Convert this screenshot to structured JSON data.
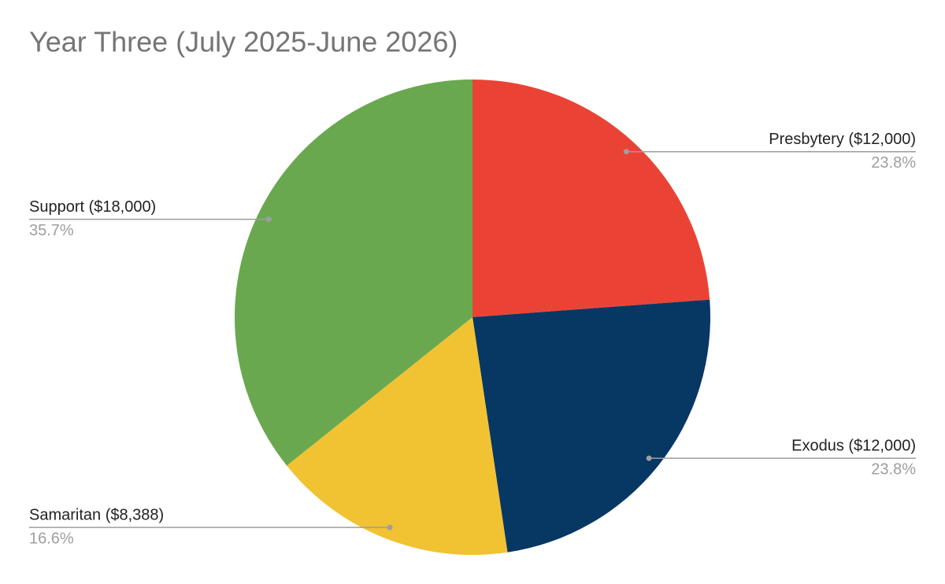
{
  "chart_data": {
    "type": "pie",
    "title": "Year Three (July 2025-June 2026)",
    "categories": [
      "Presbytery ($12,000)",
      "Exodus ($12,000)",
      "Samaritan ($8,388)",
      "Support ($18,000)"
    ],
    "values": [
      23.8,
      23.8,
      16.6,
      35.7
    ],
    "value_labels": [
      "23.8%",
      "23.8%",
      "16.6%",
      "35.7%"
    ],
    "colors": [
      "#ea4335",
      "#073763",
      "#f1c232",
      "#6aa84f"
    ]
  }
}
